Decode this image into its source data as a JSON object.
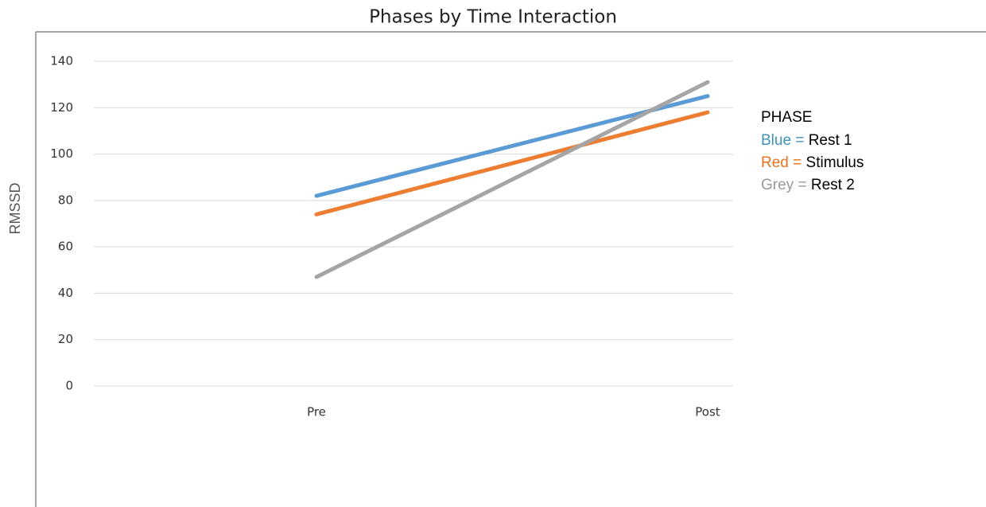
{
  "chart_data": {
    "type": "line",
    "title": "Phases by Time Interaction",
    "ylabel": "RMSSD",
    "categories": [
      "Pre",
      "Post"
    ],
    "series": [
      {
        "name": "Rest 1",
        "color_label": "Blue =",
        "color": "#5b9bd5",
        "label_color": "#3d93b8",
        "values": [
          82,
          125
        ]
      },
      {
        "name": "Stimulus",
        "color_label": "Red =",
        "color": "#ed7d31",
        "label_color": "#e8731a",
        "values": [
          74,
          118
        ]
      },
      {
        "name": "Rest 2",
        "color_label": "Grey =",
        "color": "#a5a5a5",
        "label_color": "#999999",
        "values": [
          47,
          131
        ]
      }
    ],
    "legend_title": "PHASE",
    "ylim": [
      0,
      140
    ],
    "yticks": [
      0,
      20,
      40,
      60,
      80,
      100,
      120,
      140
    ],
    "grid": true
  }
}
